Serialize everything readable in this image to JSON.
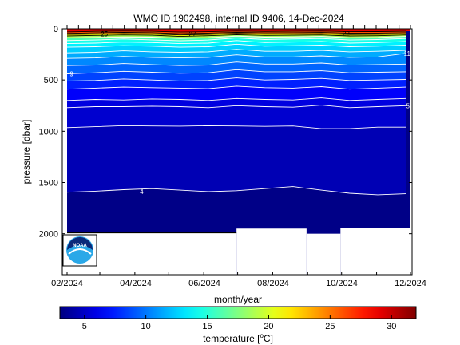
{
  "chart_data": {
    "type": "heatmap",
    "title": "WMO ID 1902498, internal ID 9406, 14-Dec-2024",
    "xlabel": "month/year",
    "ylabel": "pressure [dbar]",
    "x_ticks": [
      "02/2024",
      "04/2024",
      "06/2024",
      "08/2024",
      "10/2024",
      "12/2024"
    ],
    "x_range": [
      "2024-02-01",
      "2024-12-01"
    ],
    "y_ticks": [
      0,
      500,
      1000,
      1500,
      2000
    ],
    "ylim": [
      2400,
      0
    ],
    "y_reversed": true,
    "colorbar": {
      "label_prefix": "temperature [",
      "label_unit_sup": "o",
      "label_suffix": "C]",
      "ticks": [
        5,
        10,
        15,
        20,
        25,
        30
      ],
      "range": [
        3,
        32
      ],
      "colormap": "jet"
    },
    "isotherm_labels": [
      {
        "value": "4",
        "date": "2024-04-07",
        "pressure": 1590
      },
      {
        "value": "5.5",
        "date": "2024-12-01",
        "pressure": 750
      },
      {
        "value": "9",
        "date": "2024-02-05",
        "pressure": 440
      },
      {
        "value": "11",
        "date": "2024-11-28",
        "pressure": 240
      },
      {
        "value": "25",
        "date": "2024-03-05",
        "pressure": 50
      },
      {
        "value": "27",
        "date": "2024-05-22",
        "pressure": 50
      },
      {
        "value": "22",
        "date": "2024-10-05",
        "pressure": 45
      }
    ],
    "isotherms": [
      {
        "value": 4,
        "pressure": [
          1595,
          1585,
          1570,
          1560,
          1575,
          1590,
          1580,
          1560,
          1540,
          1575,
          1605,
          1620,
          1610
        ]
      },
      {
        "value": 5,
        "pressure": [
          965,
          955,
          945,
          948,
          950,
          946,
          948,
          952,
          948,
          975,
          975,
          960,
          960
        ]
      },
      {
        "value": 5.5,
        "pressure": [
          770,
          760,
          760,
          755,
          760,
          770,
          750,
          760,
          765,
          745,
          770,
          760,
          750
        ]
      },
      {
        "value": 6,
        "pressure": [
          700,
          690,
          695,
          685,
          690,
          700,
          680,
          690,
          695,
          675,
          700,
          690,
          680
        ]
      },
      {
        "value": 7,
        "pressure": [
          590,
          580,
          570,
          575,
          580,
          585,
          560,
          575,
          580,
          565,
          590,
          580,
          570
        ]
      },
      {
        "value": 8,
        "pressure": [
          510,
          505,
          490,
          500,
          510,
          505,
          480,
          500,
          495,
          485,
          505,
          500,
          495
        ]
      },
      {
        "value": 9,
        "pressure": [
          440,
          430,
          415,
          425,
          435,
          430,
          400,
          420,
          420,
          410,
          430,
          425,
          420
        ]
      },
      {
        "value": 10,
        "pressure": [
          360,
          355,
          340,
          350,
          360,
          355,
          325,
          345,
          345,
          335,
          355,
          350,
          345
        ]
      },
      {
        "value": 11,
        "pressure": [
          290,
          285,
          270,
          280,
          285,
          280,
          255,
          275,
          275,
          265,
          280,
          275,
          240
        ]
      },
      {
        "value": 12,
        "pressure": [
          235,
          230,
          215,
          225,
          230,
          225,
          200,
          220,
          220,
          210,
          225,
          220,
          210
        ]
      },
      {
        "value": 13,
        "pressure": [
          180,
          175,
          165,
          170,
          180,
          175,
          150,
          170,
          165,
          160,
          175,
          170,
          160
        ]
      },
      {
        "value": 14,
        "pressure": [
          145,
          140,
          130,
          135,
          145,
          140,
          115,
          135,
          130,
          125,
          140,
          135,
          125
        ]
      },
      {
        "value": 15,
        "pressure": [
          115,
          110,
          100,
          108,
          118,
          110,
          90,
          105,
          100,
          95,
          110,
          105,
          95
        ]
      },
      {
        "value": 17,
        "pressure": [
          90,
          85,
          80,
          82,
          95,
          88,
          72,
          82,
          80,
          75,
          88,
          85,
          75
        ]
      },
      {
        "value": 20,
        "pressure": [
          70,
          65,
          60,
          62,
          75,
          68,
          58,
          65,
          62,
          60,
          70,
          68,
          60
        ]
      },
      {
        "value": 22,
        "pressure": [
          55,
          52,
          48,
          50,
          60,
          55,
          45,
          52,
          50,
          48,
          56,
          54,
          50
        ]
      },
      {
        "value": 25,
        "pressure": [
          45,
          40,
          35,
          38,
          48,
          42,
          35,
          40,
          38,
          36,
          44,
          42,
          38
        ]
      },
      {
        "value": 27,
        "pressure": [
          30,
          25,
          22,
          24,
          32,
          28,
          22,
          26,
          24,
          22,
          28,
          27,
          24
        ]
      }
    ],
    "isotherm_dates": [
      "2024-02-01",
      "2024-02-26",
      "2024-03-22",
      "2024-04-16",
      "2024-05-11",
      "2024-06-05",
      "2024-06-30",
      "2024-07-25",
      "2024-08-19",
      "2024-09-13",
      "2024-10-08",
      "2024-11-02",
      "2024-11-27"
    ],
    "profile_max_pressure": [
      {
        "from": "2024-02-01",
        "to": "2024-06-30",
        "pressure": 1990
      },
      {
        "from": "2024-06-30",
        "to": "2024-08-31",
        "pressure": 1950
      },
      {
        "from": "2024-08-31",
        "to": "2024-09-30",
        "pressure": 2000
      },
      {
        "from": "2024-09-30",
        "to": "2024-12-01",
        "pressure": 1945
      }
    ]
  },
  "logo": {
    "text": "NOAA"
  }
}
